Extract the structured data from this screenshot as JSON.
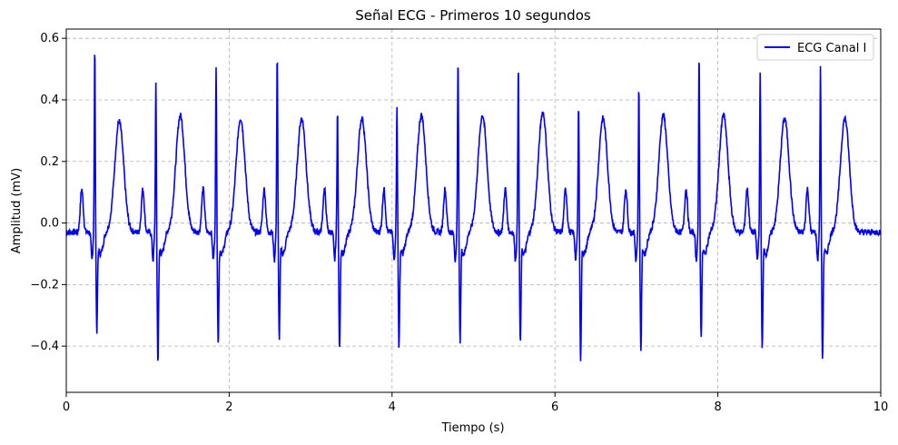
{
  "chart_data": {
    "type": "line",
    "title": "Señal ECG - Primeros 10 segundos",
    "xlabel": "Tiempo (s)",
    "ylabel": "Amplitud (mV)",
    "xlim": [
      0,
      10
    ],
    "ylim": [
      -0.55,
      0.63
    ],
    "x_ticks": [
      0,
      2,
      4,
      6,
      8,
      10
    ],
    "x_tick_labels": [
      "0",
      "2",
      "4",
      "6",
      "8",
      "10"
    ],
    "y_ticks": [
      -0.4,
      -0.2,
      0.0,
      0.2,
      0.4,
      0.6
    ],
    "y_tick_labels": [
      "−0.4",
      "−0.2",
      "0.0",
      "0.2",
      "0.4",
      "0.6"
    ],
    "grid": true,
    "legend_position": "top-right",
    "series": [
      {
        "name": "ECG Canal I",
        "color": "#0000ff",
        "beats": [
          {
            "r_time": 0.35,
            "r_amp": 0.53,
            "s_amp": -0.35,
            "t_amp": 0.29
          },
          {
            "r_time": 1.1,
            "r_amp": 0.41,
            "s_amp": -0.45,
            "t_amp": 0.31
          },
          {
            "r_time": 1.84,
            "r_amp": 0.46,
            "s_amp": -0.38,
            "t_amp": 0.3
          },
          {
            "r_time": 2.59,
            "r_amp": 0.51,
            "s_amp": -0.37,
            "t_amp": 0.3
          },
          {
            "r_time": 3.33,
            "r_amp": 0.33,
            "s_amp": -0.41,
            "t_amp": 0.3
          },
          {
            "r_time": 4.06,
            "r_amp": 0.34,
            "s_amp": -0.4,
            "t_amp": 0.31
          },
          {
            "r_time": 4.81,
            "r_amp": 0.5,
            "s_amp": -0.38,
            "t_amp": 0.31
          },
          {
            "r_time": 5.55,
            "r_amp": 0.47,
            "s_amp": -0.39,
            "t_amp": 0.32
          },
          {
            "r_time": 6.29,
            "r_amp": 0.35,
            "s_amp": -0.44,
            "t_amp": 0.3
          },
          {
            "r_time": 7.03,
            "r_amp": 0.41,
            "s_amp": -0.41,
            "t_amp": 0.31
          },
          {
            "r_time": 7.77,
            "r_amp": 0.5,
            "s_amp": -0.36,
            "t_amp": 0.31
          },
          {
            "r_time": 8.52,
            "r_amp": 0.44,
            "s_amp": -0.4,
            "t_amp": 0.3
          },
          {
            "r_time": 9.26,
            "r_amp": 0.46,
            "s_amp": -0.44,
            "t_amp": 0.3
          }
        ]
      }
    ]
  }
}
